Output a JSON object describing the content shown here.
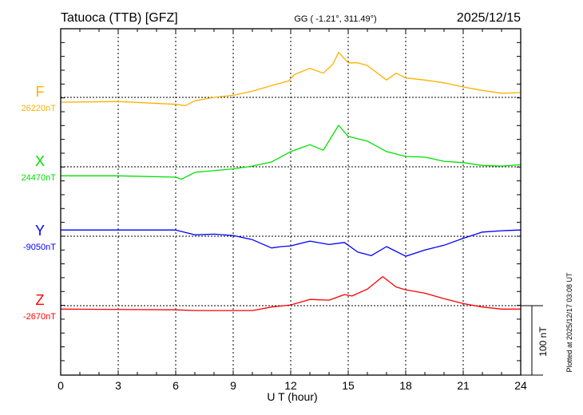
{
  "header": {
    "station": "Tatuoca (TTB)  [GFZ]",
    "coords": "GG ( -1.21°, 311.49°)",
    "date": "2025/12/15"
  },
  "footer": {
    "plotted": "Plotted at 2025/12/17 03:08 UT"
  },
  "chart_data": {
    "type": "line",
    "title": "Tatuoca (TTB)  [GFZ]",
    "xlabel": "U T (hour)",
    "xlim": [
      0,
      24
    ],
    "xticks": [
      "0",
      "3",
      "6",
      "9",
      "12",
      "15",
      "18",
      "21",
      "24"
    ],
    "scale_bar": "100 nT",
    "nT_per_minor_tick": 20,
    "grid": true,
    "series": [
      {
        "name": "F",
        "baseline_label": "26220nT",
        "color": "#ffb000",
        "x": [
          0,
          3,
          6,
          6.5,
          7,
          8,
          9,
          10,
          11,
          11.9,
          12.2,
          13,
          13.7,
          14.2,
          14.5,
          15,
          15.5,
          16,
          17,
          17.5,
          18,
          19,
          20,
          21,
          22,
          23,
          24
        ],
        "values": [
          -7,
          -6,
          -10,
          -12,
          -5,
          0,
          3,
          9,
          17,
          24,
          33,
          42,
          35,
          48,
          65,
          50,
          50,
          46,
          25,
          35,
          28,
          25,
          21,
          15,
          10,
          6,
          7
        ]
      },
      {
        "name": "X",
        "baseline_label": "24470nT",
        "color": "#00e000",
        "x": [
          0,
          3,
          6,
          6.3,
          7,
          9,
          10,
          11,
          12,
          13,
          13.7,
          14.5,
          15,
          16,
          17,
          18,
          19,
          20,
          21,
          22,
          23,
          24
        ],
        "values": [
          -13,
          -13,
          -15,
          -18,
          -8,
          -3,
          1,
          7,
          22,
          32,
          24,
          60,
          44,
          37,
          22,
          15,
          14,
          8,
          6,
          2,
          1,
          3
        ]
      },
      {
        "name": "Y",
        "baseline_label": "-9050nT",
        "color": "#0000ff",
        "x": [
          0,
          6,
          7,
          8,
          9,
          10,
          11,
          11.5,
          12,
          13,
          14,
          14.8,
          15.5,
          16.2,
          17,
          18,
          19,
          20,
          21,
          22,
          23,
          24
        ],
        "values": [
          9,
          9,
          2,
          3,
          1,
          -5,
          -17,
          -15,
          -14,
          -7,
          -12,
          -9,
          -23,
          -28,
          -15,
          -29,
          -20,
          -13,
          -3,
          6,
          8,
          9
        ]
      },
      {
        "name": "Z",
        "baseline_label": "-2670nT",
        "color": "#ff0000",
        "x": [
          0,
          6,
          7,
          10,
          11,
          12,
          13,
          14,
          14.8,
          15.2,
          16,
          16.8,
          17.5,
          18,
          19,
          20,
          21,
          22,
          23,
          24
        ],
        "values": [
          -5,
          -6,
          -7,
          -7,
          -2,
          1,
          9,
          8,
          16,
          14,
          24,
          42,
          27,
          23,
          18,
          10,
          3,
          -2,
          -5,
          -5
        ]
      }
    ]
  }
}
